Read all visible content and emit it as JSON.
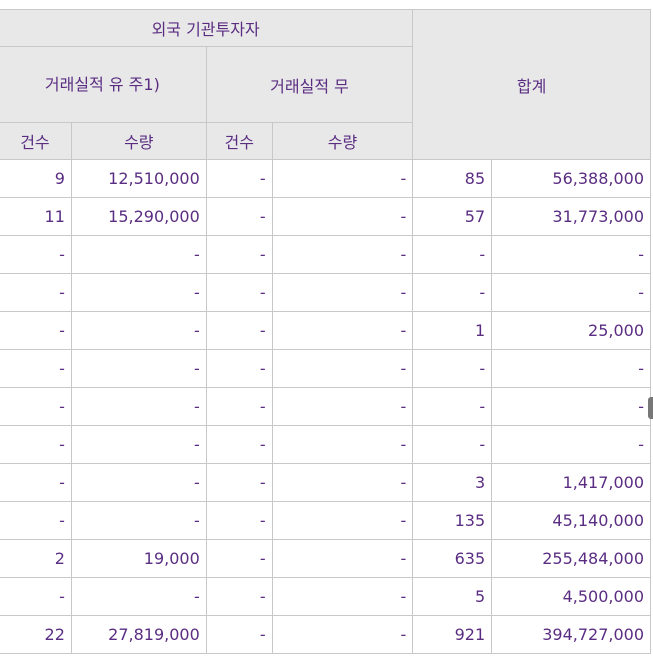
{
  "header": {
    "group_label": "외국 기관투자자",
    "traded_yes": "거래실적 유 주1)",
    "traded_no": "거래실적 무",
    "total": "합계",
    "count": "건수",
    "quantity": "수량"
  },
  "rows": [
    {
      "yes_count": "9",
      "yes_qty": "12,510,000",
      "no_count": "-",
      "no_qty": "-",
      "total_count": "85",
      "total_qty": "56,388,000"
    },
    {
      "yes_count": "11",
      "yes_qty": "15,290,000",
      "no_count": "-",
      "no_qty": "-",
      "total_count": "57",
      "total_qty": "31,773,000"
    },
    {
      "yes_count": "-",
      "yes_qty": "-",
      "no_count": "-",
      "no_qty": "-",
      "total_count": "-",
      "total_qty": "-"
    },
    {
      "yes_count": "-",
      "yes_qty": "-",
      "no_count": "-",
      "no_qty": "-",
      "total_count": "-",
      "total_qty": "-"
    },
    {
      "yes_count": "-",
      "yes_qty": "-",
      "no_count": "-",
      "no_qty": "-",
      "total_count": "1",
      "total_qty": "25,000"
    },
    {
      "yes_count": "-",
      "yes_qty": "-",
      "no_count": "-",
      "no_qty": "-",
      "total_count": "-",
      "total_qty": "-"
    },
    {
      "yes_count": "-",
      "yes_qty": "-",
      "no_count": "-",
      "no_qty": "-",
      "total_count": "-",
      "total_qty": "-"
    },
    {
      "yes_count": "-",
      "yes_qty": "-",
      "no_count": "-",
      "no_qty": "-",
      "total_count": "-",
      "total_qty": "-"
    },
    {
      "yes_count": "-",
      "yes_qty": "-",
      "no_count": "-",
      "no_qty": "-",
      "total_count": "3",
      "total_qty": "1,417,000"
    },
    {
      "yes_count": "-",
      "yes_qty": "-",
      "no_count": "-",
      "no_qty": "-",
      "total_count": "135",
      "total_qty": "45,140,000"
    },
    {
      "yes_count": "2",
      "yes_qty": "19,000",
      "no_count": "-",
      "no_qty": "-",
      "total_count": "635",
      "total_qty": "255,484,000"
    },
    {
      "yes_count": "-",
      "yes_qty": "-",
      "no_count": "-",
      "no_qty": "-",
      "total_count": "5",
      "total_qty": "4,500,000"
    },
    {
      "yes_count": "22",
      "yes_qty": "27,819,000",
      "no_count": "-",
      "no_qty": "-",
      "total_count": "921",
      "total_qty": "394,727,000"
    }
  ]
}
